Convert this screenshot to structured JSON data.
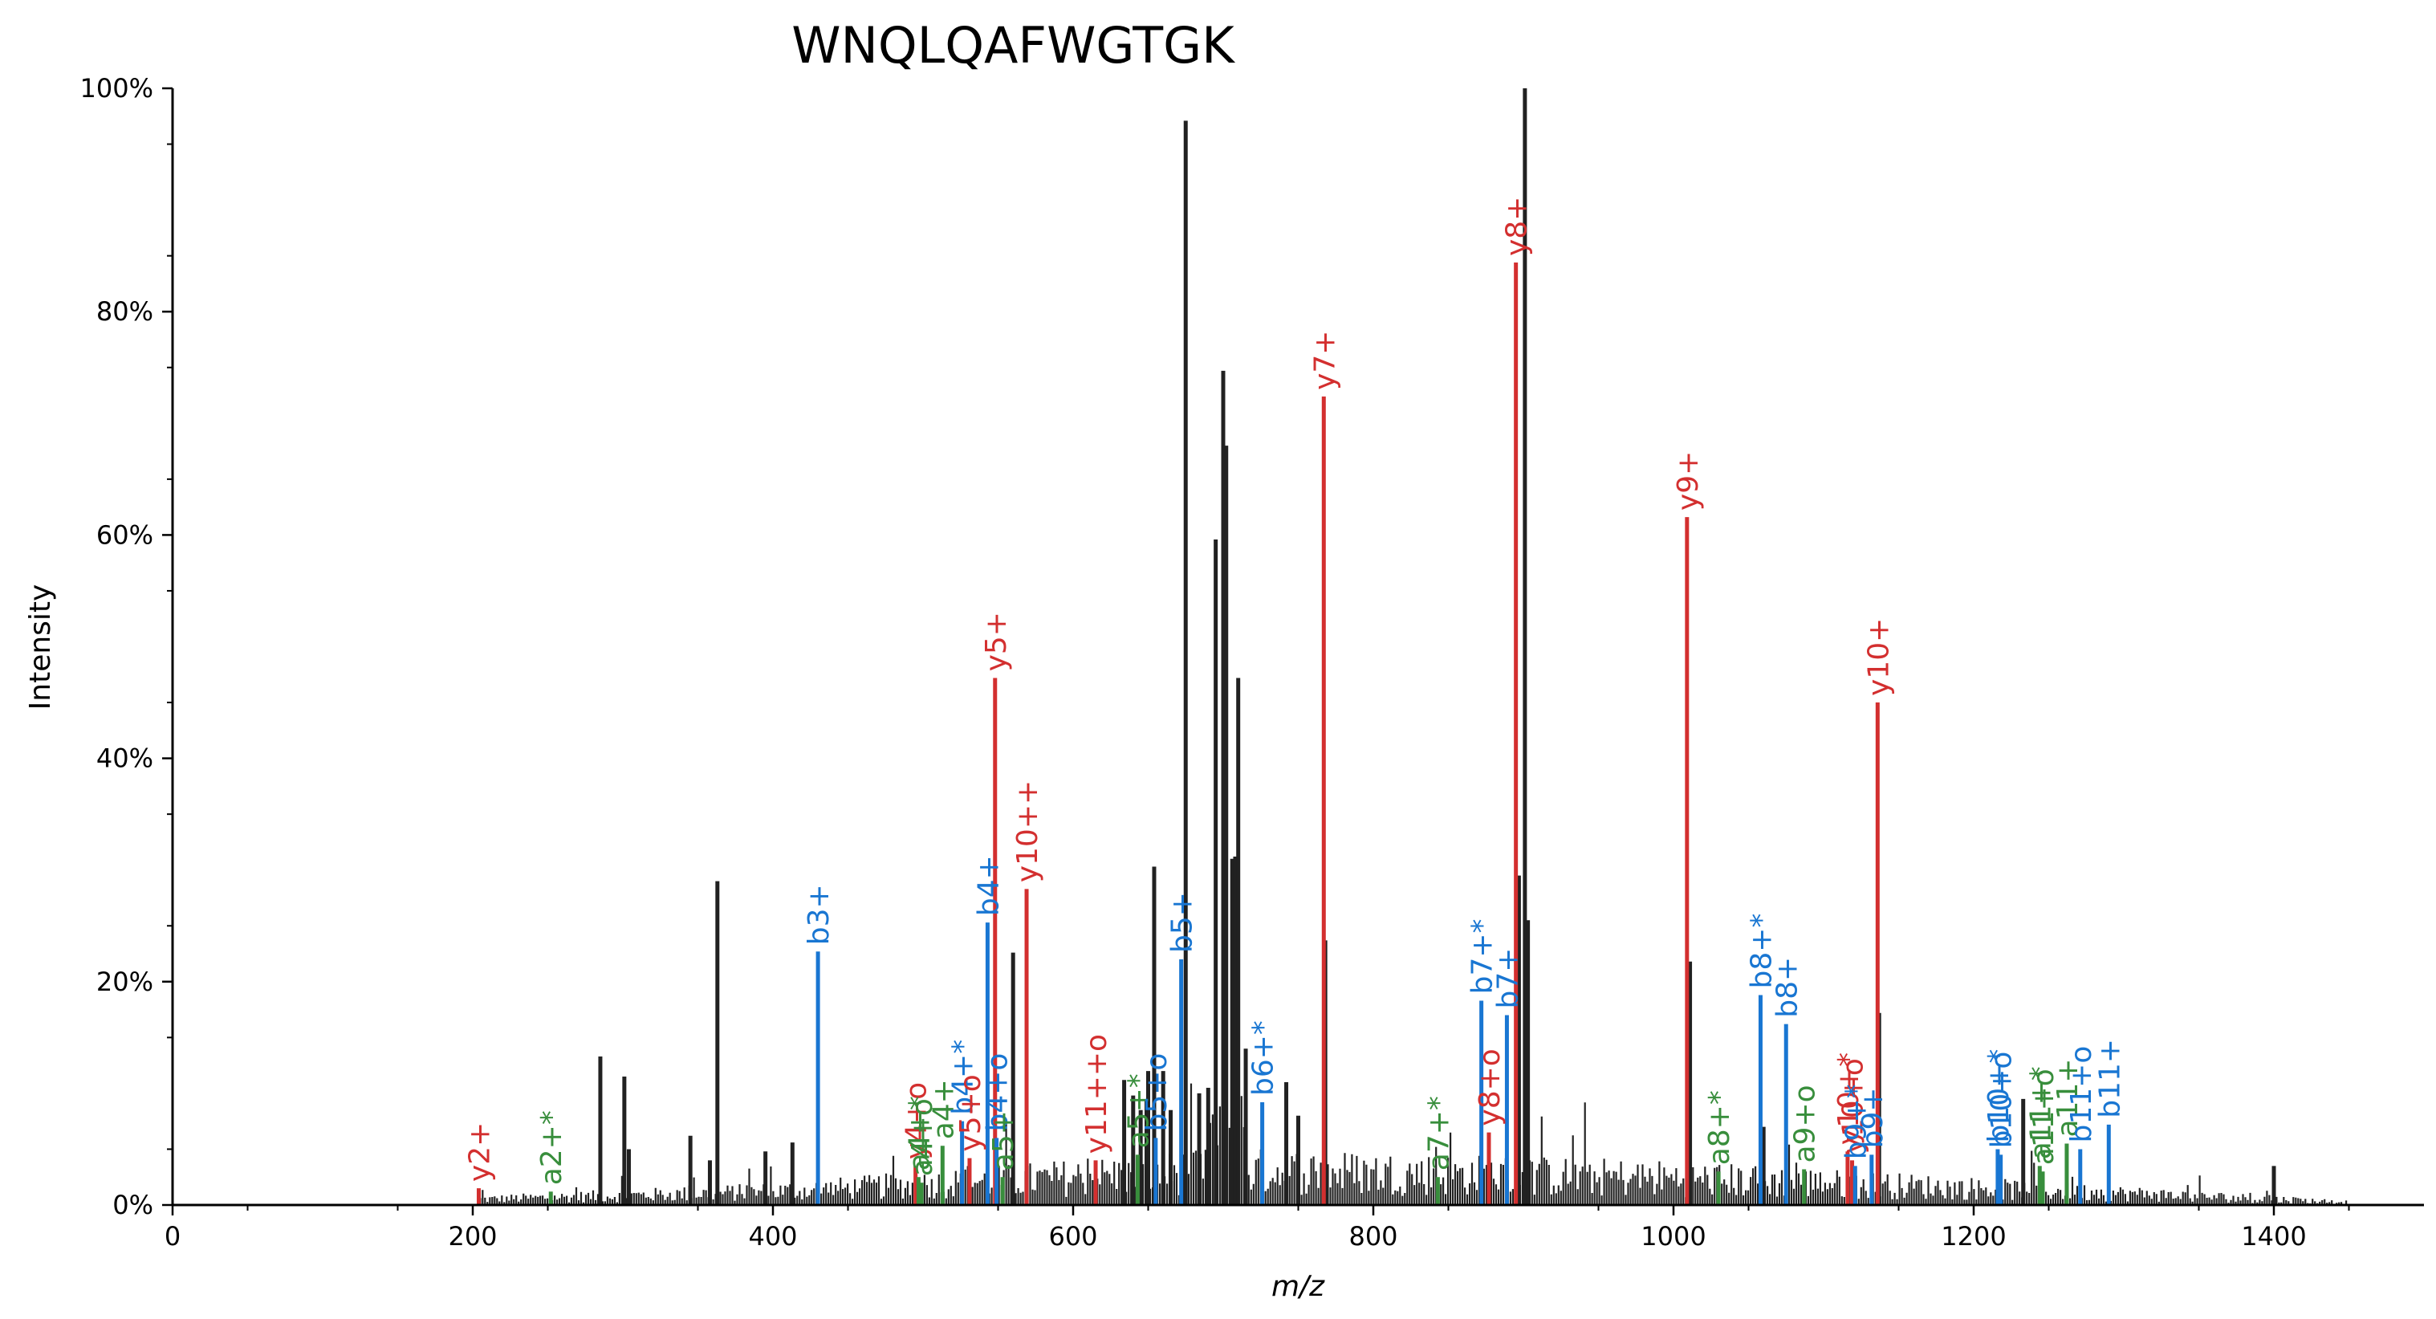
{
  "chart_data": {
    "type": "bar",
    "title": "WNQLQAFWGTGK",
    "xlabel": "m/z",
    "ylabel": "Intensity",
    "xlim": [
      0,
      1500
    ],
    "ylim": [
      0,
      100
    ],
    "x_ticks": [
      0,
      200,
      400,
      600,
      800,
      1000,
      1200,
      1400
    ],
    "x_tick_labels": [
      "0",
      "200",
      "400",
      "600",
      "800",
      "1000",
      "1200",
      "1400"
    ],
    "y_ticks": [
      0,
      20,
      40,
      60,
      80,
      100
    ],
    "y_tick_labels": [
      "0%",
      "20%",
      "40%",
      "60%",
      "80%",
      "100%"
    ],
    "grid": false,
    "colors": {
      "unannotated": "#212121",
      "y": "#d32f2f",
      "b": "#1976d2",
      "a": "#388e3c"
    },
    "unannotated_peaks": [
      {
        "mz": 285,
        "intensity": 13.3
      },
      {
        "mz": 301,
        "intensity": 11.5
      },
      {
        "mz": 304,
        "intensity": 5.0
      },
      {
        "mz": 345,
        "intensity": 6.2
      },
      {
        "mz": 358,
        "intensity": 4.0
      },
      {
        "mz": 363,
        "intensity": 29.0
      },
      {
        "mz": 395,
        "intensity": 4.8
      },
      {
        "mz": 413,
        "intensity": 5.6
      },
      {
        "mz": 560,
        "intensity": 22.6
      },
      {
        "mz": 634,
        "intensity": 11.2
      },
      {
        "mz": 640,
        "intensity": 9.8
      },
      {
        "mz": 645,
        "intensity": 8.5
      },
      {
        "mz": 650,
        "intensity": 12.0
      },
      {
        "mz": 654,
        "intensity": 30.3
      },
      {
        "mz": 660,
        "intensity": 12.0
      },
      {
        "mz": 665,
        "intensity": 8.5
      },
      {
        "mz": 675,
        "intensity": 97.1
      },
      {
        "mz": 684,
        "intensity": 10.0
      },
      {
        "mz": 690,
        "intensity": 10.5
      },
      {
        "mz": 695,
        "intensity": 59.6
      },
      {
        "mz": 700,
        "intensity": 74.7
      },
      {
        "mz": 702,
        "intensity": 68.0
      },
      {
        "mz": 706,
        "intensity": 31.0
      },
      {
        "mz": 708,
        "intensity": 31.2
      },
      {
        "mz": 710,
        "intensity": 47.2
      },
      {
        "mz": 715,
        "intensity": 14.0
      },
      {
        "mz": 742,
        "intensity": 11.0
      },
      {
        "mz": 750,
        "intensity": 8.0
      },
      {
        "mz": 768,
        "intensity": 23.7
      },
      {
        "mz": 897,
        "intensity": 29.5
      },
      {
        "mz": 901,
        "intensity": 100.0
      },
      {
        "mz": 903,
        "intensity": 25.5
      },
      {
        "mz": 1011,
        "intensity": 21.8
      },
      {
        "mz": 1060,
        "intensity": 7.0
      },
      {
        "mz": 1137,
        "intensity": 17.2
      },
      {
        "mz": 1233,
        "intensity": 9.5
      },
      {
        "mz": 1400,
        "intensity": 3.5
      }
    ],
    "annotated_peaks": [
      {
        "mz": 204,
        "intensity": 1.5,
        "ion": "y",
        "label": "y2+"
      },
      {
        "mz": 252,
        "intensity": 1.2,
        "ion": "a",
        "label": "a2+*"
      },
      {
        "mz": 430,
        "intensity": 22.7,
        "ion": "b",
        "label": "b3+"
      },
      {
        "mz": 495,
        "intensity": 3.5,
        "ion": "y",
        "label": "y4+o"
      },
      {
        "mz": 497,
        "intensity": 2.5,
        "ion": "a",
        "label": "a4+*"
      },
      {
        "mz": 499,
        "intensity": 2.0,
        "ion": "a",
        "label": "a4+o"
      },
      {
        "mz": 513,
        "intensity": 5.3,
        "ion": "a",
        "label": "a4+"
      },
      {
        "mz": 526,
        "intensity": 7.5,
        "ion": "b",
        "label": "b4+*"
      },
      {
        "mz": 531,
        "intensity": 4.2,
        "ion": "y",
        "label": "y5+o"
      },
      {
        "mz": 543,
        "intensity": 25.3,
        "ion": "b",
        "label": "b4+"
      },
      {
        "mz": 548,
        "intensity": 47.2,
        "ion": "y",
        "label": "y5+"
      },
      {
        "mz": 549,
        "intensity": 6.0,
        "ion": "b",
        "label": "b4+o"
      },
      {
        "mz": 553,
        "intensity": 2.5,
        "ion": "a",
        "label": "a5+"
      },
      {
        "mz": 569,
        "intensity": 28.3,
        "ion": "y",
        "label": "y10++"
      },
      {
        "mz": 615,
        "intensity": 4.0,
        "ion": "y",
        "label": "y11++o"
      },
      {
        "mz": 643,
        "intensity": 4.5,
        "ion": "a",
        "label": "a5+*"
      },
      {
        "mz": 655,
        "intensity": 6.0,
        "ion": "b",
        "label": "b5+o"
      },
      {
        "mz": 672,
        "intensity": 22.0,
        "ion": "b",
        "label": "b5+"
      },
      {
        "mz": 726,
        "intensity": 9.2,
        "ion": "b",
        "label": "b6+*"
      },
      {
        "mz": 767,
        "intensity": 72.4,
        "ion": "y",
        "label": "y7+"
      },
      {
        "mz": 843,
        "intensity": 2.5,
        "ion": "a",
        "label": "a7+*"
      },
      {
        "mz": 872,
        "intensity": 18.3,
        "ion": "b",
        "label": "b7+*"
      },
      {
        "mz": 877,
        "intensity": 6.5,
        "ion": "y",
        "label": "y8+o"
      },
      {
        "mz": 889,
        "intensity": 17.0,
        "ion": "b",
        "label": "b7+"
      },
      {
        "mz": 895,
        "intensity": 84.4,
        "ion": "y",
        "label": "y8+"
      },
      {
        "mz": 1009,
        "intensity": 61.6,
        "ion": "y",
        "label": "y9+"
      },
      {
        "mz": 1030,
        "intensity": 3.0,
        "ion": "a",
        "label": "a8+*"
      },
      {
        "mz": 1058,
        "intensity": 18.8,
        "ion": "b",
        "label": "b8+*"
      },
      {
        "mz": 1075,
        "intensity": 16.2,
        "ion": "b",
        "label": "b8+"
      },
      {
        "mz": 1087,
        "intensity": 3.2,
        "ion": "a",
        "label": "a9+o"
      },
      {
        "mz": 1116,
        "intensity": 4.8,
        "ion": "y",
        "label": "y10+*"
      },
      {
        "mz": 1119,
        "intensity": 4.0,
        "ion": "y",
        "label": "y10+o"
      },
      {
        "mz": 1121,
        "intensity": 3.5,
        "ion": "b",
        "label": "b9+*"
      },
      {
        "mz": 1132,
        "intensity": 4.5,
        "ion": "b",
        "label": "b9+"
      },
      {
        "mz": 1136,
        "intensity": 45.0,
        "ion": "y",
        "label": "y10+"
      },
      {
        "mz": 1216,
        "intensity": 5.0,
        "ion": "b",
        "label": "b10+*"
      },
      {
        "mz": 1218,
        "intensity": 4.5,
        "ion": "b",
        "label": "b10+o"
      },
      {
        "mz": 1244,
        "intensity": 3.5,
        "ion": "a",
        "label": "a11+*"
      },
      {
        "mz": 1246,
        "intensity": 3.0,
        "ion": "a",
        "label": "a11+o"
      },
      {
        "mz": 1262,
        "intensity": 5.5,
        "ion": "a",
        "label": "a11+"
      },
      {
        "mz": 1271,
        "intensity": 5.0,
        "ion": "b",
        "label": "b11+o"
      },
      {
        "mz": 1290,
        "intensity": 7.2,
        "ion": "b",
        "label": "b11+"
      }
    ]
  }
}
